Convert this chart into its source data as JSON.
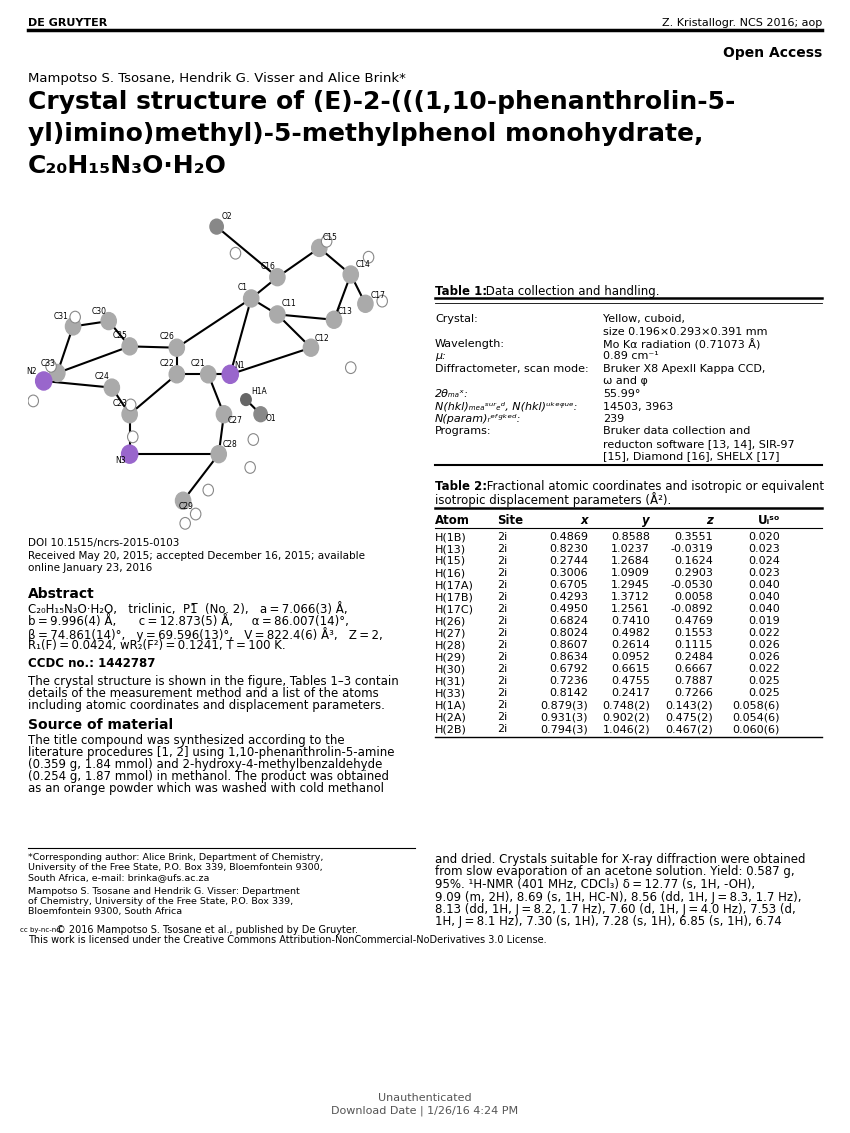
{
  "header_left": "DE GRUYTER",
  "header_right": "Z. Kristallogr. NCS 2016; aop",
  "open_access": "Open Access",
  "authors": "Mampotso S. Tsosane, Hendrik G. Visser and Alice Brink*",
  "title_line1": "Crystal structure of (E)-2-(((1,10-phenanthrolin-5-",
  "title_line2": "yl)imino)methyl)-5-methylphenol monohydrate,",
  "title_line3": "C₂₀H₁₅N₃O·H₂O",
  "doi": "DOI 10.1515/ncrs-2015-0103",
  "received": "Received May 20, 2015; accepted December 16, 2015; available",
  "received2": "online January 23, 2016",
  "abstract_title": "Abstract",
  "abstract_line1": "C₂₀H₁₅N₃O·H₂O,   triclinic,  P1̅  (No. 2),   a = 7.066(3) Å,",
  "abstract_line2": "b = 9.996(4) Å,      c = 12.873(5) Å,     α = 86.007(14)°,",
  "abstract_line3": "β = 74.861(14)°,   y = 69.596(13)°,   V = 822.4(6) Å³,   Z = 2,",
  "abstract_line4": "R₁(F) = 0.0424, wR₂(F²) = 0.1241, T = 100 K.",
  "ccdc": "CCDC no.: 1442787",
  "abstract_body1": "The crystal structure is shown in the figure, Tables 1–3 contain",
  "abstract_body2": "details of the measurement method and a list of the atoms",
  "abstract_body3": "including atomic coordinates and displacement parameters.",
  "source_title": "Source of material",
  "source1": "The title compound was synthesized according to the",
  "source2": "literature procedures [1, 2] using 1,10-phenanthrolin-5-amine",
  "source3": "(0.359 g, 1.84 mmol) and 2-hydroxy-4-methylbenzaldehyde",
  "source4": "(0.254 g, 1.87 mmol) in methanol. The product was obtained",
  "source5": "as an orange powder which was washed with cold methanol",
  "footnote1": "*Corresponding author: Alice Brink, Department of Chemistry,",
  "footnote2": "University of the Free State, P.O. Box 339, Bloemfontein 9300,",
  "footnote3": "South Africa, e-mail: brinka@ufs.ac.za",
  "footnote4": "Mampotso S. Tsosane and Hendrik G. Visser: Department",
  "footnote5": "of Chemistry, University of the Free State, P.O. Box 339,",
  "footnote6": "Bloemfontein 9300, South Africa",
  "cc_text": "© 2016 Mampotso S. Tsosane et al., published by De Gruyter.",
  "cc_text2": "This work is licensed under the Creative Commons Attribution-NonCommercial-NoDerivatives 3.0 License.",
  "bottom1": "Unauthenticated",
  "bottom2": "Download Date | 1/26/16 4:24 PM",
  "right_col_text1": "and dried. Crystals suitable for X-ray diffraction were obtained",
  "right_col_text2": "from slow evaporation of an acetone solution. Yield: 0.587 g,",
  "right_col_text3": "95%. ¹H-NMR (401 MHz, CDCl₃) δ = 12.77 (s, 1H, -OH),",
  "right_col_text4": "9.09 (m, 2H), 8.69 (s, 1H, HC-N), 8.56 (dd, 1H, J = 8.3, 1.7 Hz),",
  "right_col_text5": "8.13 (dd, 1H, J = 8.2, 1.7 Hz), 7.60 (d, 1H, J = 4.0 Hz), 7.53 (d,",
  "right_col_text6": "1H, J = 8.1 Hz), 7.30 (s, 1H), 7.28 (s, 1H), 6.85 (s, 1H), 6.74",
  "table2_data": [
    [
      "H(1B)",
      "2i",
      "0.4869",
      "0.8588",
      "0.3551",
      "0.020"
    ],
    [
      "H(13)",
      "2i",
      "0.8230",
      "1.0237",
      "-0.0319",
      "0.023"
    ],
    [
      "H(15)",
      "2i",
      "0.2744",
      "1.2684",
      "0.1624",
      "0.024"
    ],
    [
      "H(16)",
      "2i",
      "0.3006",
      "1.0909",
      "0.2903",
      "0.023"
    ],
    [
      "H(17A)",
      "2i",
      "0.6705",
      "1.2945",
      "-0.0530",
      "0.040"
    ],
    [
      "H(17B)",
      "2i",
      "0.4293",
      "1.3712",
      "0.0058",
      "0.040"
    ],
    [
      "H(17C)",
      "2i",
      "0.4950",
      "1.2561",
      "-0.0892",
      "0.040"
    ],
    [
      "H(26)",
      "2i",
      "0.6824",
      "0.7410",
      "0.4769",
      "0.019"
    ],
    [
      "H(27)",
      "2i",
      "0.8024",
      "0.4982",
      "0.1553",
      "0.022"
    ],
    [
      "H(28)",
      "2i",
      "0.8607",
      "0.2614",
      "0.1115",
      "0.026"
    ],
    [
      "H(29)",
      "2i",
      "0.8634",
      "0.0952",
      "0.2484",
      "0.026"
    ],
    [
      "H(30)",
      "2i",
      "0.6792",
      "0.6615",
      "0.6667",
      "0.022"
    ],
    [
      "H(31)",
      "2i",
      "0.7236",
      "0.4755",
      "0.7887",
      "0.025"
    ],
    [
      "H(33)",
      "2i",
      "0.8142",
      "0.2417",
      "0.7266",
      "0.025"
    ],
    [
      "H(1A)",
      "2i",
      "0.879(3)",
      "0.748(2)",
      "0.143(2)",
      "0.058(6)"
    ],
    [
      "H(2A)",
      "2i",
      "0.931(3)",
      "0.902(2)",
      "0.475(2)",
      "0.054(6)"
    ],
    [
      "H(2B)",
      "2i",
      "0.794(3)",
      "1.046(2)",
      "0.467(2)",
      "0.060(6)"
    ]
  ]
}
